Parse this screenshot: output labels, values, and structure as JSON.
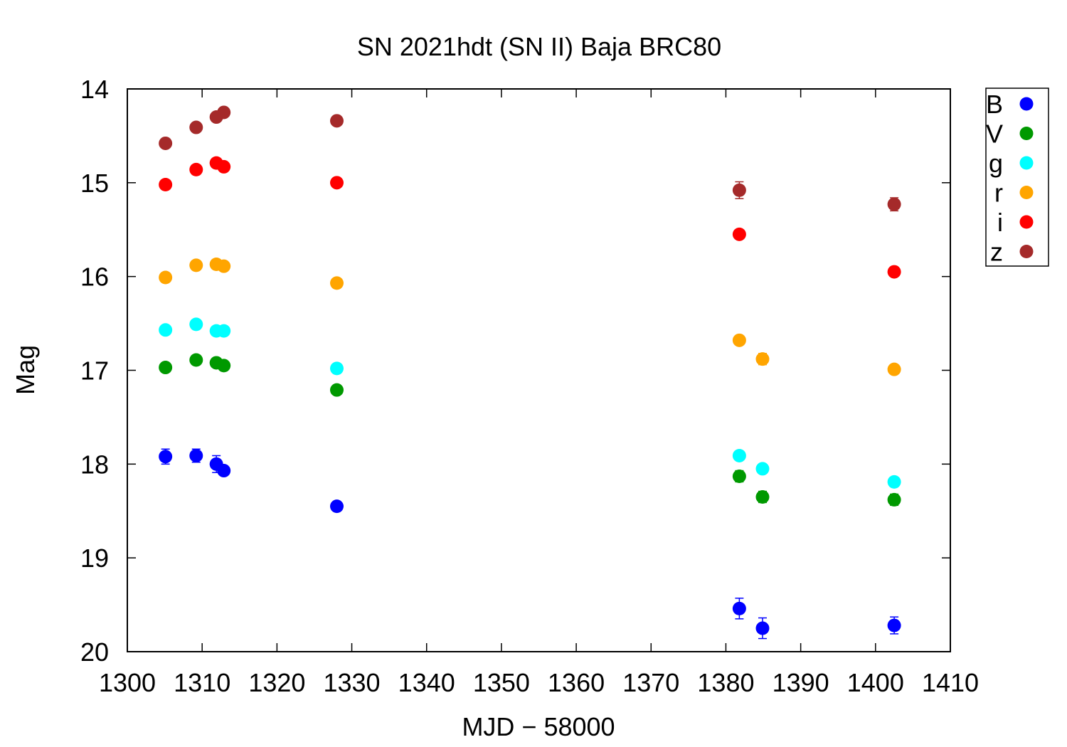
{
  "chart_data": {
    "type": "scatter",
    "title": "SN 2021hdt (SN II) Baja BRC80",
    "xlabel": "MJD − 58000",
    "ylabel": "Mag",
    "xlim": [
      1300,
      1410
    ],
    "ylim": [
      14,
      20
    ],
    "y_inverted": true,
    "x_ticks": [
      1300,
      1310,
      1320,
      1330,
      1340,
      1350,
      1360,
      1370,
      1380,
      1390,
      1400,
      1410
    ],
    "y_ticks": [
      14,
      15,
      16,
      17,
      18,
      19,
      20
    ],
    "legend_position": "outside-top-right",
    "grid": false,
    "series": [
      {
        "name": "B",
        "color": "#0000ff",
        "points": [
          {
            "x": 1305.1,
            "y": 17.92,
            "err": 0.08
          },
          {
            "x": 1309.2,
            "y": 17.91,
            "err": 0.07
          },
          {
            "x": 1311.9,
            "y": 18.0,
            "err": 0.09
          },
          {
            "x": 1312.9,
            "y": 18.07,
            "err": 0.05
          },
          {
            "x": 1328.0,
            "y": 18.45,
            "err": 0.03
          },
          {
            "x": 1381.8,
            "y": 19.54,
            "err": 0.11
          },
          {
            "x": 1384.9,
            "y": 19.75,
            "err": 0.11
          },
          {
            "x": 1402.5,
            "y": 19.72,
            "err": 0.09
          }
        ]
      },
      {
        "name": "V",
        "color": "#009900",
        "points": [
          {
            "x": 1305.1,
            "y": 16.97,
            "err": 0.03
          },
          {
            "x": 1309.2,
            "y": 16.89,
            "err": 0.03
          },
          {
            "x": 1311.9,
            "y": 16.92,
            "err": 0.03
          },
          {
            "x": 1312.9,
            "y": 16.95,
            "err": 0.03
          },
          {
            "x": 1328.0,
            "y": 17.21,
            "err": 0.03
          },
          {
            "x": 1381.8,
            "y": 18.13,
            "err": 0.06
          },
          {
            "x": 1384.9,
            "y": 18.35,
            "err": 0.06
          },
          {
            "x": 1402.5,
            "y": 18.38,
            "err": 0.06
          }
        ]
      },
      {
        "name": "g",
        "color": "#00ffff",
        "points": [
          {
            "x": 1305.1,
            "y": 16.57,
            "err": 0.02
          },
          {
            "x": 1309.2,
            "y": 16.51,
            "err": 0.02
          },
          {
            "x": 1311.9,
            "y": 16.58,
            "err": 0.02
          },
          {
            "x": 1312.9,
            "y": 16.58,
            "err": 0.02
          },
          {
            "x": 1328.0,
            "y": 16.98,
            "err": 0.02
          },
          {
            "x": 1381.8,
            "y": 17.91,
            "err": 0.03
          },
          {
            "x": 1384.9,
            "y": 18.05,
            "err": 0.04
          },
          {
            "x": 1402.5,
            "y": 18.19,
            "err": 0.03
          }
        ]
      },
      {
        "name": "r",
        "color": "#ffa500",
        "points": [
          {
            "x": 1305.1,
            "y": 16.01,
            "err": 0.02
          },
          {
            "x": 1309.2,
            "y": 15.88,
            "err": 0.02
          },
          {
            "x": 1311.9,
            "y": 15.87,
            "err": 0.02
          },
          {
            "x": 1312.9,
            "y": 15.89,
            "err": 0.02
          },
          {
            "x": 1328.0,
            "y": 16.07,
            "err": 0.02
          },
          {
            "x": 1381.8,
            "y": 16.68,
            "err": 0.03
          },
          {
            "x": 1384.9,
            "y": 16.88,
            "err": 0.06
          },
          {
            "x": 1402.5,
            "y": 16.99,
            "err": 0.03
          }
        ]
      },
      {
        "name": "i",
        "color": "#ff0000",
        "points": [
          {
            "x": 1305.1,
            "y": 15.02,
            "err": 0.02
          },
          {
            "x": 1309.2,
            "y": 14.86,
            "err": 0.02
          },
          {
            "x": 1311.9,
            "y": 14.79,
            "err": 0.02
          },
          {
            "x": 1312.9,
            "y": 14.83,
            "err": 0.02
          },
          {
            "x": 1328.0,
            "y": 15.0,
            "err": 0.02
          },
          {
            "x": 1381.8,
            "y": 15.55,
            "err": 0.02
          },
          {
            "x": 1402.5,
            "y": 15.95,
            "err": 0.02
          }
        ]
      },
      {
        "name": "z",
        "color": "#a52a2a",
        "points": [
          {
            "x": 1305.1,
            "y": 14.58,
            "err": 0.02
          },
          {
            "x": 1309.2,
            "y": 14.41,
            "err": 0.02
          },
          {
            "x": 1311.9,
            "y": 14.3,
            "err": 0.02
          },
          {
            "x": 1312.9,
            "y": 14.25,
            "err": 0.02
          },
          {
            "x": 1328.0,
            "y": 14.34,
            "err": 0.02
          },
          {
            "x": 1381.8,
            "y": 15.08,
            "err": 0.09
          },
          {
            "x": 1402.5,
            "y": 15.23,
            "err": 0.07
          }
        ]
      }
    ]
  }
}
